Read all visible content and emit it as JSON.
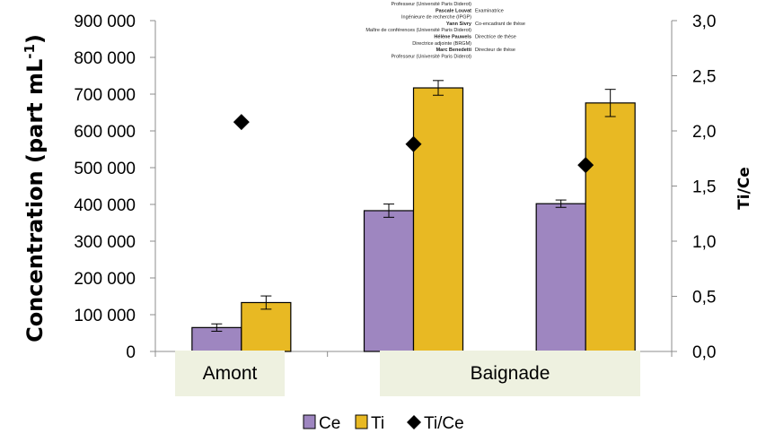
{
  "chart_data": {
    "type": "bar",
    "categories": [
      "Amont",
      "Baignade",
      "Baignade"
    ],
    "category_groups": [
      {
        "label": "Amont"
      },
      {
        "label": "Baignade"
      }
    ],
    "series": [
      {
        "name": "Ce",
        "values": [
          65000,
          383000,
          402000
        ],
        "errors": [
          10000,
          18000,
          10000
        ],
        "color": "#9e86c0"
      },
      {
        "name": "Ti",
        "values": [
          133000,
          717000,
          676000
        ],
        "errors": [
          18000,
          20000,
          37000
        ],
        "color": "#e8b923"
      },
      {
        "name": "Ti/Ce",
        "values": [
          2.08,
          1.88,
          1.69
        ],
        "axis": "right",
        "marker": "diamond",
        "color": "#000000"
      }
    ],
    "ylabel_left": "Concentration (part mL",
    "ylabel_left_sup": "-1",
    "ylabel_left_end": ")",
    "ylabel_right": "Ti/Ce",
    "ylim_left": [
      0,
      900000
    ],
    "ylim_right": [
      0,
      3.0
    ],
    "yticks_left": [
      "0",
      "100 000",
      "200 000",
      "300 000",
      "400 000",
      "500 000",
      "600 000",
      "700 000",
      "800 000",
      "900 000"
    ],
    "yticks_right": [
      "0,0",
      "0,5",
      "1,0",
      "1,5",
      "2,0",
      "2,5",
      "3,0"
    ],
    "legend_position": "bottom",
    "grid": false
  },
  "overlay_lines": [
    {
      "text": "Professeur (Université Paris Diderot)",
      "bold": false
    },
    {
      "text": "Pascale Louvat",
      "bold": true,
      "suffix": "Examinatrice"
    },
    {
      "text": "Ingénieure de recherche (IPGP)",
      "bold": false
    },
    {
      "text": "Yann Sivry",
      "bold": true,
      "suffix": "Co-encadrant de thèse"
    },
    {
      "text": "Maître de conférences (Université Paris Diderot)",
      "bold": false
    },
    {
      "text": "Hélène Pauwels",
      "bold": true,
      "suffix": "Directrice de thèse"
    },
    {
      "text": "Directrice adjointe (BRGM)",
      "bold": false
    },
    {
      "text": "Marc Benedetti",
      "bold": true,
      "suffix": "Directeur de thèse"
    },
    {
      "text": "Professeur (Université Paris Diderot)",
      "bold": false
    }
  ]
}
